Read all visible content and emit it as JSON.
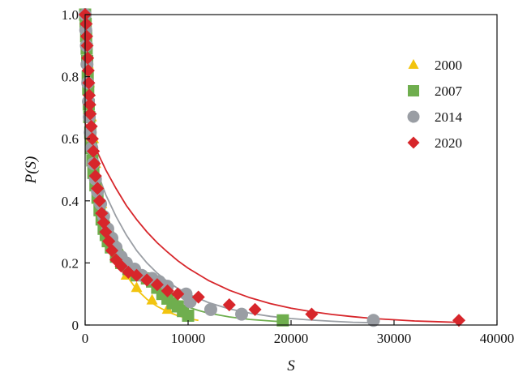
{
  "chart_data": {
    "type": "scatter",
    "title": "",
    "xlabel": "S",
    "ylabel": "P(S)",
    "xlim": [
      0,
      40000
    ],
    "ylim": [
      0,
      1.0
    ],
    "xticks": [
      0,
      10000,
      20000,
      30000,
      40000
    ],
    "xtick_labels": [
      "0",
      "10000",
      "20000",
      "30000",
      "40000"
    ],
    "yticks": [
      0,
      0.2,
      0.4,
      0.6,
      0.8,
      1.0
    ],
    "ytick_labels": [
      "0",
      "0.2",
      "0.4",
      "0.6",
      "0.8",
      "1.0"
    ],
    "grid": false,
    "legend_position": "top-right",
    "series": [
      {
        "name": "2000",
        "marker": "triangle",
        "color": "#F2C40F",
        "points": [
          [
            0,
            1.0
          ],
          [
            100,
            0.95
          ],
          [
            200,
            0.9
          ],
          [
            300,
            0.84
          ],
          [
            400,
            0.78
          ],
          [
            500,
            0.72
          ],
          [
            600,
            0.67
          ],
          [
            800,
            0.6
          ],
          [
            1000,
            0.52
          ],
          [
            1300,
            0.45
          ],
          [
            1600,
            0.39
          ],
          [
            2000,
            0.33
          ],
          [
            2500,
            0.27
          ],
          [
            3000,
            0.22
          ],
          [
            4000,
            0.16
          ],
          [
            5000,
            0.12
          ],
          [
            6500,
            0.08
          ],
          [
            8000,
            0.05
          ]
        ],
        "fit": [
          [
            0,
            0.63
          ],
          [
            500,
            0.52
          ],
          [
            1000,
            0.44
          ],
          [
            1500,
            0.37
          ],
          [
            2000,
            0.31
          ],
          [
            3000,
            0.22
          ],
          [
            4000,
            0.16
          ],
          [
            5000,
            0.115
          ],
          [
            6000,
            0.083
          ],
          [
            7000,
            0.06
          ],
          [
            8000,
            0.043
          ],
          [
            9000,
            0.03
          ],
          [
            10000,
            0.021
          ],
          [
            11000,
            0.015
          ]
        ]
      },
      {
        "name": "2007",
        "marker": "square",
        "color": "#6FAE4E",
        "points": [
          [
            0,
            1.0
          ],
          [
            50,
            0.97
          ],
          [
            100,
            0.93
          ],
          [
            150,
            0.89
          ],
          [
            200,
            0.85
          ],
          [
            250,
            0.8
          ],
          [
            300,
            0.76
          ],
          [
            350,
            0.71
          ],
          [
            400,
            0.67
          ],
          [
            500,
            0.62
          ],
          [
            600,
            0.57
          ],
          [
            700,
            0.53
          ],
          [
            800,
            0.49
          ],
          [
            1000,
            0.45
          ],
          [
            1200,
            0.41
          ],
          [
            1400,
            0.37
          ],
          [
            1600,
            0.34
          ],
          [
            1800,
            0.31
          ],
          [
            2000,
            0.29
          ],
          [
            2200,
            0.27
          ],
          [
            2500,
            0.25
          ],
          [
            3000,
            0.22
          ],
          [
            3500,
            0.2
          ],
          [
            4200,
            0.18
          ],
          [
            5000,
            0.16
          ],
          [
            6000,
            0.15
          ],
          [
            6500,
            0.14
          ],
          [
            7000,
            0.12
          ],
          [
            7500,
            0.1
          ],
          [
            8000,
            0.085
          ],
          [
            8500,
            0.07
          ],
          [
            9000,
            0.06
          ],
          [
            9500,
            0.045
          ],
          [
            10000,
            0.03
          ],
          [
            19200,
            0.015
          ]
        ],
        "fit": [
          [
            0,
            0.6
          ],
          [
            1000,
            0.46
          ],
          [
            2000,
            0.36
          ],
          [
            3000,
            0.28
          ],
          [
            4000,
            0.22
          ],
          [
            5000,
            0.175
          ],
          [
            6000,
            0.14
          ],
          [
            7000,
            0.11
          ],
          [
            8000,
            0.09
          ],
          [
            9000,
            0.072
          ],
          [
            10000,
            0.058
          ],
          [
            11000,
            0.047
          ],
          [
            12000,
            0.038
          ],
          [
            14000,
            0.026
          ],
          [
            16000,
            0.018
          ],
          [
            18000,
            0.013
          ],
          [
            19500,
            0.01
          ]
        ]
      },
      {
        "name": "2014",
        "marker": "circle",
        "color": "#9A9EA4",
        "points": [
          [
            0,
            1.0
          ],
          [
            60,
            0.95
          ],
          [
            120,
            0.9
          ],
          [
            180,
            0.84
          ],
          [
            250,
            0.78
          ],
          [
            320,
            0.72
          ],
          [
            400,
            0.67
          ],
          [
            500,
            0.62
          ],
          [
            650,
            0.57
          ],
          [
            800,
            0.52
          ],
          [
            1000,
            0.47
          ],
          [
            1200,
            0.43
          ],
          [
            1500,
            0.39
          ],
          [
            1800,
            0.35
          ],
          [
            2200,
            0.31
          ],
          [
            2600,
            0.28
          ],
          [
            3000,
            0.25
          ],
          [
            3500,
            0.22
          ],
          [
            4000,
            0.2
          ],
          [
            4800,
            0.18
          ],
          [
            5500,
            0.16
          ],
          [
            6500,
            0.15
          ],
          [
            7200,
            0.14
          ],
          [
            8000,
            0.125
          ],
          [
            9800,
            0.1
          ],
          [
            10200,
            0.075
          ],
          [
            12200,
            0.05
          ],
          [
            15200,
            0.035
          ],
          [
            28000,
            0.015
          ]
        ],
        "fit": [
          [
            0,
            0.62
          ],
          [
            1000,
            0.51
          ],
          [
            2000,
            0.42
          ],
          [
            3000,
            0.35
          ],
          [
            4000,
            0.29
          ],
          [
            5000,
            0.24
          ],
          [
            6000,
            0.2
          ],
          [
            7000,
            0.167
          ],
          [
            8000,
            0.14
          ],
          [
            9000,
            0.118
          ],
          [
            10000,
            0.1
          ],
          [
            12000,
            0.072
          ],
          [
            14000,
            0.052
          ],
          [
            16000,
            0.038
          ],
          [
            18000,
            0.028
          ],
          [
            20000,
            0.021
          ],
          [
            22000,
            0.016
          ],
          [
            24000,
            0.012
          ],
          [
            26000,
            0.009
          ],
          [
            28500,
            0.007
          ]
        ]
      },
      {
        "name": "2020",
        "marker": "diamond",
        "color": "#D7262B",
        "points": [
          [
            0,
            1.0
          ],
          [
            100,
            0.97
          ],
          [
            150,
            0.93
          ],
          [
            200,
            0.9
          ],
          [
            250,
            0.86
          ],
          [
            300,
            0.82
          ],
          [
            350,
            0.78
          ],
          [
            400,
            0.74
          ],
          [
            450,
            0.71
          ],
          [
            500,
            0.68
          ],
          [
            600,
            0.64
          ],
          [
            700,
            0.6
          ],
          [
            800,
            0.56
          ],
          [
            900,
            0.52
          ],
          [
            1000,
            0.48
          ],
          [
            1200,
            0.44
          ],
          [
            1400,
            0.4
          ],
          [
            1600,
            0.36
          ],
          [
            1800,
            0.33
          ],
          [
            2000,
            0.3
          ],
          [
            2300,
            0.27
          ],
          [
            2600,
            0.24
          ],
          [
            3000,
            0.21
          ],
          [
            3500,
            0.19
          ],
          [
            4200,
            0.17
          ],
          [
            5000,
            0.16
          ],
          [
            6000,
            0.145
          ],
          [
            7000,
            0.13
          ],
          [
            8000,
            0.11
          ],
          [
            9000,
            0.1
          ],
          [
            11000,
            0.09
          ],
          [
            14000,
            0.065
          ],
          [
            16500,
            0.05
          ],
          [
            22000,
            0.035
          ],
          [
            36300,
            0.015
          ]
        ],
        "fit": [
          [
            0,
            0.65
          ],
          [
            1000,
            0.57
          ],
          [
            2000,
            0.5
          ],
          [
            3000,
            0.44
          ],
          [
            4000,
            0.385
          ],
          [
            5000,
            0.34
          ],
          [
            6000,
            0.3
          ],
          [
            7000,
            0.265
          ],
          [
            8000,
            0.235
          ],
          [
            9000,
            0.207
          ],
          [
            10000,
            0.183
          ],
          [
            12000,
            0.143
          ],
          [
            14000,
            0.112
          ],
          [
            16000,
            0.088
          ],
          [
            18000,
            0.069
          ],
          [
            20000,
            0.054
          ],
          [
            22000,
            0.043
          ],
          [
            24000,
            0.034
          ],
          [
            26000,
            0.027
          ],
          [
            28000,
            0.021
          ],
          [
            30000,
            0.017
          ],
          [
            32000,
            0.013
          ],
          [
            34000,
            0.011
          ],
          [
            36500,
            0.008
          ]
        ]
      }
    ]
  }
}
